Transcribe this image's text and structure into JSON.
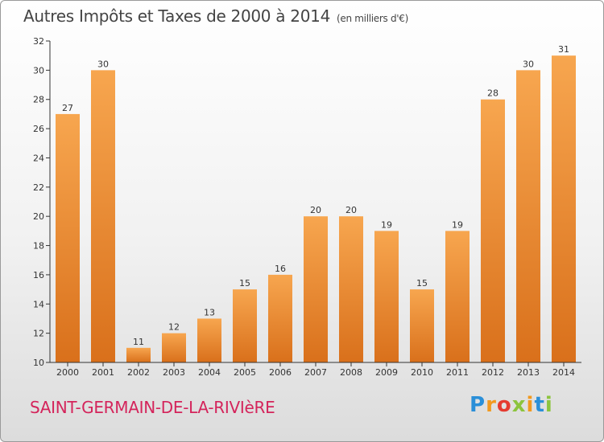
{
  "header": {
    "title": "Autres Impôts et Taxes de 2000 à 2014",
    "unit": "(en milliers d'€)"
  },
  "commune_name": "SAINT-GERMAIN-DE-LA-RIVIèRE",
  "logo": {
    "text": "Proxiti",
    "letters": [
      "P",
      "r",
      "o",
      "x",
      "i",
      "t",
      "i"
    ],
    "letter_colors": [
      "#2a8fd8",
      "#f2991e",
      "#e53b30",
      "#8cc43d",
      "#f2991e",
      "#2a8fd8",
      "#8cc43d"
    ]
  },
  "colors": {
    "bar_light": "#f7a64f",
    "bar_dark": "#d9701b",
    "axis": "#333333",
    "grid": "#d8d8d8",
    "title_text": "#444444",
    "commune_text": "#d4245b"
  },
  "chart_data": {
    "type": "bar",
    "title": "Autres Impôts et Taxes de 2000 à 2014",
    "subtitle": "(en milliers d'€)",
    "categories": [
      "2000",
      "2001",
      "2002",
      "2003",
      "2004",
      "2005",
      "2006",
      "2007",
      "2008",
      "2009",
      "2010",
      "2011",
      "2012",
      "2013",
      "2014"
    ],
    "values": [
      27,
      30,
      11,
      12,
      13,
      15,
      16,
      20,
      20,
      19,
      15,
      19,
      28,
      30,
      31
    ],
    "ylim": [
      10,
      32
    ],
    "yticks": [
      10,
      12,
      14,
      16,
      18,
      20,
      22,
      24,
      26,
      28,
      30,
      32
    ],
    "grid": false,
    "data_labels": true
  }
}
